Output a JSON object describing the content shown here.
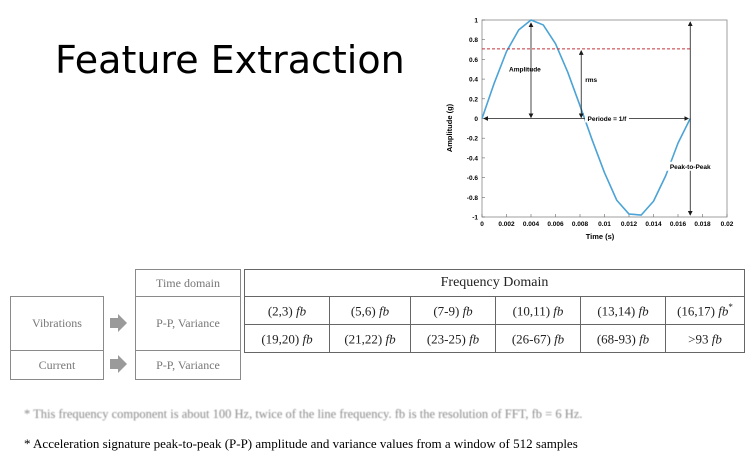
{
  "slide": {
    "title": "Feature Extraction"
  },
  "chart_data": {
    "type": "line",
    "xlabel": "Time (s)",
    "ylabel": "Amplitude (g)",
    "xlim": [
      0,
      0.02
    ],
    "ylim": [
      -1,
      1
    ],
    "x_ticks": [
      "0",
      "0.002",
      "0.004",
      "0.006",
      "0.008",
      "0.01",
      "0.012",
      "0.014",
      "0.016",
      "0.018",
      "0.02"
    ],
    "y_ticks": [
      "-1",
      "-0.8",
      "-0.6",
      "-0.4",
      "-0.2",
      "0",
      "0.2",
      "0.4",
      "0.6",
      "0.8",
      "1"
    ],
    "series": [
      {
        "x": [
          0,
          0.001,
          0.002,
          0.003,
          0.004,
          0.005,
          0.006,
          0.007,
          0.008,
          0.009,
          0.01,
          0.011,
          0.012,
          0.013,
          0.014,
          0.015,
          0.016,
          0.017
        ],
        "y": [
          0,
          0.36,
          0.68,
          0.9,
          1.0,
          0.95,
          0.76,
          0.47,
          0.13,
          -0.22,
          -0.55,
          -0.83,
          -0.97,
          -0.98,
          -0.84,
          -0.58,
          -0.25,
          0.0
        ]
      }
    ],
    "rms_level": 0.707,
    "period_end": 0.017,
    "annotations": {
      "amplitude": "Amplitude",
      "rms": "rms",
      "period": "Periode = 1/f",
      "peak_to_peak": "Peak-to-Peak"
    },
    "colors": {
      "wave": "#4ba3d6",
      "rms_line": "#c8333a"
    }
  },
  "diagram": {
    "vibrations": "Vibrations",
    "current": "Current",
    "time_domain_header": "Time domain",
    "time_domain_vibrations": "P-P, Variance",
    "time_domain_current": "P-P, Variance"
  },
  "frequency": {
    "header": "Frequency Domain",
    "unit": "fb",
    "row1": [
      {
        "range": "(2,3)",
        "star": ""
      },
      {
        "range": "(5,6)",
        "star": ""
      },
      {
        "range": "(7-9)",
        "star": ""
      },
      {
        "range": "(10,11)",
        "star": ""
      },
      {
        "range": "(13,14)",
        "star": ""
      },
      {
        "range": "(16,17)",
        "star": "*"
      }
    ],
    "row2": [
      {
        "range": "(19,20)",
        "star": ""
      },
      {
        "range": "(21,22)",
        "star": ""
      },
      {
        "range": "(23-25)",
        "star": ""
      },
      {
        "range": "(26-67)",
        "star": ""
      },
      {
        "range": "(68-93)",
        "star": ""
      },
      {
        "range": ">93",
        "star": ""
      }
    ]
  },
  "footnotes": {
    "note1": "* This frequency component is about 100 Hz, twice of the line frequency. fb is the resolution of FFT, fb = 6 Hz.",
    "note2": "* Acceleration signature peak-to-peak (P-P) amplitude and variance values from a window of 512 samples"
  }
}
